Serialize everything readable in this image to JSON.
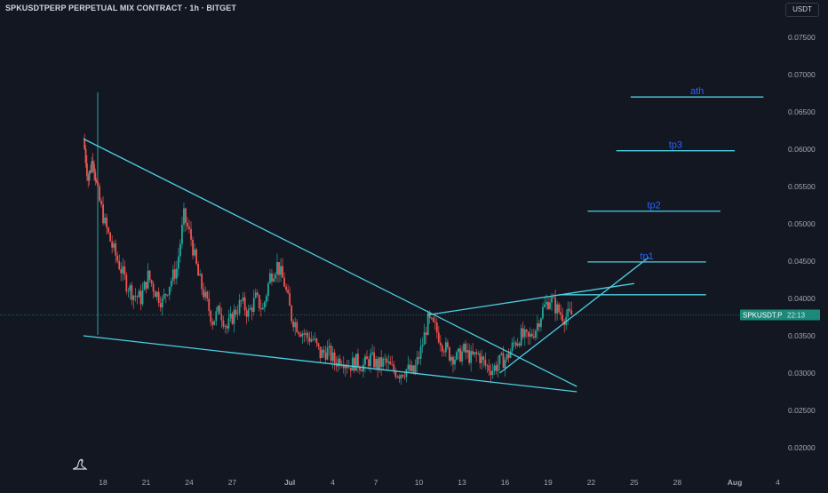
{
  "title": "SPKUSDTPERP PERPETUAL MIX CONTRACT · 1h · BITGET",
  "currency": "USDT",
  "icons": {
    "logo": "tradingview-logo-icon"
  },
  "colors": {
    "background": "#131722",
    "up_candle": "#26a69a",
    "down_candle": "#ef5350",
    "trendline": "#4dd0e1",
    "target_text": "#2962ff",
    "price_label": "#1b8a7a",
    "axis_text": "#a3a6af"
  },
  "chart_data": {
    "type": "candlestick",
    "title": "SPKUSDTPERP PERPETUAL MIX CONTRACT · 1h · BITGET",
    "y_axis": {
      "ticks": [
        "0.07500",
        "0.07000",
        "0.06500",
        "0.06000",
        "0.05500",
        "0.05000",
        "0.04500",
        "0.04000",
        "0.03500",
        "0.03000",
        "0.02500",
        "0.02000"
      ],
      "range": [
        0.0175,
        0.0785
      ]
    },
    "x_axis": {
      "ticks": [
        "18",
        "21",
        "24",
        "27",
        "Jul",
        "4",
        "7",
        "10",
        "13",
        "16",
        "19",
        "22",
        "25",
        "28",
        "Aug",
        "4"
      ]
    },
    "current_price": {
      "symbol": "SPKUSDT.P",
      "countdown": "22:13",
      "value": 0.0378
    },
    "price_path": [
      [
        "Jun 17",
        0.0614
      ],
      [
        "Jun 17",
        0.056
      ],
      [
        "Jun 17",
        0.059
      ],
      [
        "Jun 18",
        0.054
      ],
      [
        "Jun 18",
        0.05
      ],
      [
        "Jun 19",
        0.047
      ],
      [
        "Jun 19",
        0.0445
      ],
      [
        "Jun 20",
        0.042
      ],
      [
        "Jun 20",
        0.0405
      ],
      [
        "Jun 21",
        0.04
      ],
      [
        "Jun 21",
        0.043
      ],
      [
        "Jun 22",
        0.041
      ],
      [
        "Jun 22",
        0.0395
      ],
      [
        "Jun 23",
        0.042
      ],
      [
        "Jun 23",
        0.044
      ],
      [
        "Jun 24",
        0.051
      ],
      [
        "Jun 24",
        0.048
      ],
      [
        "Jun 25",
        0.043
      ],
      [
        "Jun 25",
        0.04
      ],
      [
        "Jun 26",
        0.037
      ],
      [
        "Jun 26",
        0.0385
      ],
      [
        "Jun 27",
        0.036
      ],
      [
        "Jun 27",
        0.038
      ],
      [
        "Jun 28",
        0.0395
      ],
      [
        "Jun 28",
        0.038
      ],
      [
        "Jun 29",
        0.04
      ],
      [
        "Jun 29",
        0.0385
      ],
      [
        "Jun 30",
        0.043
      ],
      [
        "Jun 30",
        0.0445
      ],
      [
        "Jul 1",
        0.042
      ],
      [
        "Jul 1",
        0.0375
      ],
      [
        "Jul 2",
        0.036
      ],
      [
        "Jul 2",
        0.035
      ],
      [
        "Jul 3",
        0.0345
      ],
      [
        "Jul 3",
        0.0325
      ],
      [
        "Jul 4",
        0.033
      ],
      [
        "Jul 4",
        0.0315
      ],
      [
        "Jul 5",
        0.032
      ],
      [
        "Jul 5",
        0.031
      ],
      [
        "Jul 6",
        0.0315
      ],
      [
        "Jul 6",
        0.031
      ],
      [
        "Jul 7",
        0.032
      ],
      [
        "Jul 7",
        0.031
      ],
      [
        "Jul 8",
        0.0315
      ],
      [
        "Jul 8",
        0.0305
      ],
      [
        "Jul 9",
        0.03
      ],
      [
        "Jul 9",
        0.0305
      ],
      [
        "Jul 10",
        0.03
      ],
      [
        "Jul 10",
        0.033
      ],
      [
        "Jul 11",
        0.037
      ],
      [
        "Jul 11",
        0.036
      ],
      [
        "Jul 12",
        0.034
      ],
      [
        "Jul 12",
        0.0325
      ],
      [
        "Jul 13",
        0.032
      ],
      [
        "Jul 13",
        0.033
      ],
      [
        "Jul 14",
        0.032
      ],
      [
        "Jul 14",
        0.0325
      ],
      [
        "Jul 15",
        0.031
      ],
      [
        "Jul 15",
        0.0305
      ],
      [
        "Jul 16",
        0.0315
      ],
      [
        "Jul 16",
        0.032
      ],
      [
        "Jul 17",
        0.034
      ],
      [
        "Jul 17",
        0.035
      ],
      [
        "Jul 18",
        0.0345
      ],
      [
        "Jul 18",
        0.036
      ],
      [
        "Jul 19",
        0.0385
      ],
      [
        "Jul 19",
        0.04
      ],
      [
        "Jul 20",
        0.0385
      ],
      [
        "Jul 20",
        0.0375
      ],
      [
        "Jul 21",
        0.0378
      ]
    ],
    "drawings": {
      "trendlines": [
        {
          "from": [
            "Jun 17",
            0.0614
          ],
          "to": [
            "Jul 21",
            0.0282
          ]
        },
        {
          "from": [
            "Jun 17",
            0.035
          ],
          "to": [
            "Jul 21",
            0.0275
          ]
        },
        {
          "from": [
            "Jul 11",
            0.0378
          ],
          "to": [
            "Jul 25",
            0.042
          ]
        },
        {
          "from": [
            "Jul 16",
            0.03
          ],
          "to": [
            "Jul 26",
            0.0455
          ]
        }
      ],
      "horizontal_levels": [
        {
          "value": 0.0405,
          "from": "Jul 20",
          "to": "Jul 30"
        },
        {
          "label": "tp1",
          "value": 0.0449,
          "from": "Jul 22",
          "to": "Jul 30"
        },
        {
          "label": "tp2",
          "value": 0.0517,
          "from": "Jul 22",
          "to": "Jul 31"
        },
        {
          "label": "tp3",
          "value": 0.0598,
          "from": "Jul 24",
          "to": "Aug 1"
        },
        {
          "label": "ath",
          "value": 0.067,
          "from": "Jul 25",
          "to": "Aug 3"
        }
      ]
    }
  }
}
